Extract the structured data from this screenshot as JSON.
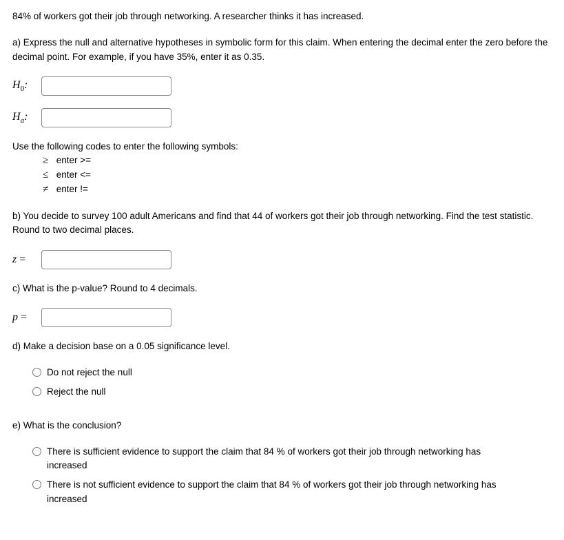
{
  "intro": "84% of workers got their job through networking. A researcher thinks it has increased.",
  "partA": {
    "text": "a) Express the null and alternative hypotheses in symbolic form for this claim. When entering the decimal enter the zero before the decimal point. For example, if you have 35%, enter it as 0.35.",
    "h0_label_prefix": "H",
    "h0_label_sub": "0",
    "h0_label_suffix": ":",
    "ha_label_prefix": "H",
    "ha_label_sub": "a",
    "ha_label_suffix": ":"
  },
  "codes": {
    "lead": "Use the following codes to enter the following symbols:",
    "lines": [
      {
        "sym": "≥",
        "txt": "enter >="
      },
      {
        "sym": "≤",
        "txt": "enter <="
      },
      {
        "sym": "≠",
        "txt": "enter !="
      }
    ]
  },
  "partB": {
    "text": "b) You decide to survey 100 adult Americans and find that 44 of workers got their job through networking. Find the test statistic. Round to two decimal places.",
    "label_var": "z",
    "label_eq": " ="
  },
  "partC": {
    "text": "c) What is the p-value? Round to 4 decimals.",
    "label_var": "p",
    "label_eq": " ="
  },
  "partD": {
    "text": "d) Make a decision base on a 0.05 significance level.",
    "options": [
      "Do not reject the null",
      "Reject the null"
    ]
  },
  "partE": {
    "text": "e) What is the conclusion?",
    "options": [
      "There is sufficient evidence to support the claim that 84 % of workers got their job through networking has increased",
      "There is not sufficient evidence to support the claim that 84 % of workers got their job through networking has increased"
    ]
  }
}
